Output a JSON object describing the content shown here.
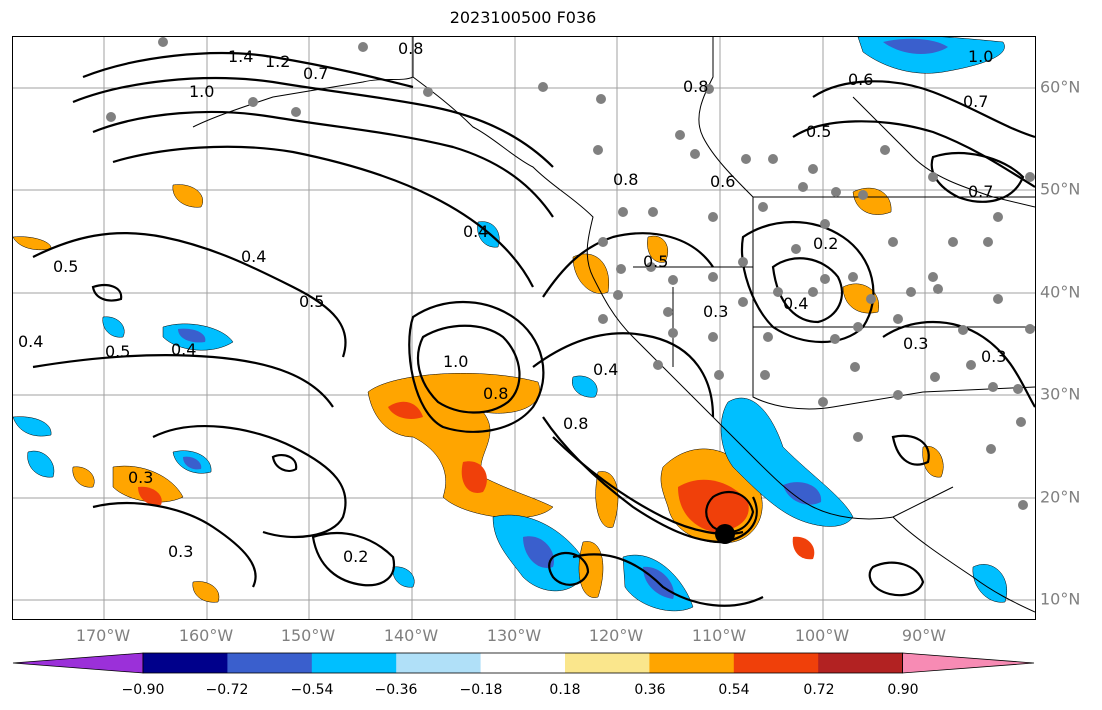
{
  "title": "2023100500 F036",
  "lon_labels": [
    "170°W",
    "160°W",
    "150°W",
    "140°W",
    "130°W",
    "120°W",
    "110°W",
    "100°W",
    "90°W"
  ],
  "lat_labels": [
    "60°N",
    "50°N",
    "40°N",
    "30°N",
    "20°N",
    "10°N"
  ],
  "contour_labels": [
    "1.4",
    "1.2",
    "0.7",
    "1.0",
    "0.8",
    "0.8",
    "0.6",
    "0.5",
    "0.7",
    "1.0",
    "0.8",
    "0.6",
    "0.7",
    "0.4",
    "0.4",
    "0.5",
    "0.5",
    "0.4",
    "0.4",
    "0.5",
    "0.5",
    "1.0",
    "0.8",
    "0.8",
    "0.4",
    "0.3",
    "0.2",
    "0.4",
    "0.3",
    "0.3",
    "0.3",
    "0.2",
    "0.3"
  ],
  "colorbar": {
    "ticks": [
      "−0.90",
      "−0.72",
      "−0.54",
      "−0.36",
      "−0.18",
      "0.18",
      "0.36",
      "0.54",
      "0.72",
      "0.90"
    ],
    "colors": [
      "#9b30d9",
      "#00008b",
      "#3a5fcd",
      "#00bfff",
      "#b0e0f8",
      "#ffffff",
      "#fae68c",
      "#ffa500",
      "#f0400a",
      "#b22222",
      "#f78bb4"
    ]
  },
  "colors": {
    "gray_label": "#808080",
    "station_dots": "#808080",
    "contour": "#000000"
  }
}
